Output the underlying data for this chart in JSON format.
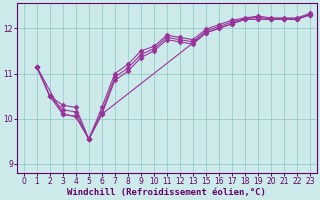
{
  "xlabel": "Windchill (Refroidissement éolien,°C)",
  "background_color": "#cceaea",
  "line_color": "#993399",
  "grid_color": "#99cccc",
  "xlim": [
    -0.5,
    22.5
  ],
  "ylim": [
    8.8,
    12.55
  ],
  "xtick_labels": [
    "0",
    "1",
    "2",
    "3",
    "4",
    "5",
    "6",
    "7",
    "8",
    "9",
    "10",
    "11",
    "12",
    "13",
    "15",
    "16",
    "17",
    "18",
    "19",
    "20",
    "21",
    "22",
    "23"
  ],
  "yticks": [
    9,
    10,
    11,
    12
  ],
  "lines": [
    {
      "x": [
        1,
        2,
        3,
        4,
        5,
        6,
        7,
        8,
        9,
        10,
        11,
        12,
        13,
        14,
        15,
        16,
        17,
        18,
        19,
        20,
        21,
        22
      ],
      "y": [
        11.15,
        10.5,
        10.1,
        10.05,
        9.55,
        10.1,
        10.85,
        11.05,
        11.35,
        11.5,
        11.75,
        11.7,
        11.65,
        11.9,
        12.0,
        12.1,
        12.2,
        12.2,
        12.2,
        12.2,
        12.2,
        12.3
      ],
      "marker": "D",
      "markersize": 2.5
    },
    {
      "x": [
        1,
        2,
        3,
        4,
        5,
        6,
        7,
        8,
        9,
        10,
        11,
        12,
        13,
        14,
        15,
        16,
        17,
        18,
        19,
        20,
        21,
        22
      ],
      "y": [
        11.15,
        10.5,
        10.3,
        10.25,
        9.55,
        10.25,
        11.0,
        11.2,
        11.5,
        11.6,
        11.85,
        11.8,
        11.75,
        11.98,
        12.08,
        12.18,
        12.23,
        12.27,
        12.23,
        12.23,
        12.23,
        12.33
      ],
      "marker": "D",
      "markersize": 2.5
    },
    {
      "x": [
        1,
        2,
        3,
        4,
        5,
        6,
        7,
        8,
        9,
        10,
        11,
        12,
        13,
        14,
        15,
        16,
        17,
        18,
        19,
        20,
        21,
        22
      ],
      "y": [
        11.15,
        10.5,
        10.2,
        10.15,
        9.55,
        10.15,
        10.92,
        11.12,
        11.42,
        11.55,
        11.8,
        11.75,
        11.7,
        11.94,
        12.04,
        12.14,
        12.21,
        12.25,
        12.21,
        12.21,
        12.21,
        12.31
      ],
      "marker": "D",
      "markersize": 2.5
    },
    {
      "x": [
        1,
        3,
        4,
        5,
        6,
        14,
        15,
        16,
        17,
        18,
        19,
        20,
        21,
        22
      ],
      "y": [
        11.15,
        10.1,
        10.05,
        9.55,
        10.1,
        11.9,
        12.0,
        12.1,
        12.2,
        12.2,
        12.2,
        12.2,
        12.2,
        12.3
      ],
      "marker": "D",
      "markersize": 2.5
    }
  ],
  "axis_color": "#660066",
  "tick_color": "#660066",
  "xlabel_fontsize": 6.5,
  "tick_fontsize": 5.5
}
